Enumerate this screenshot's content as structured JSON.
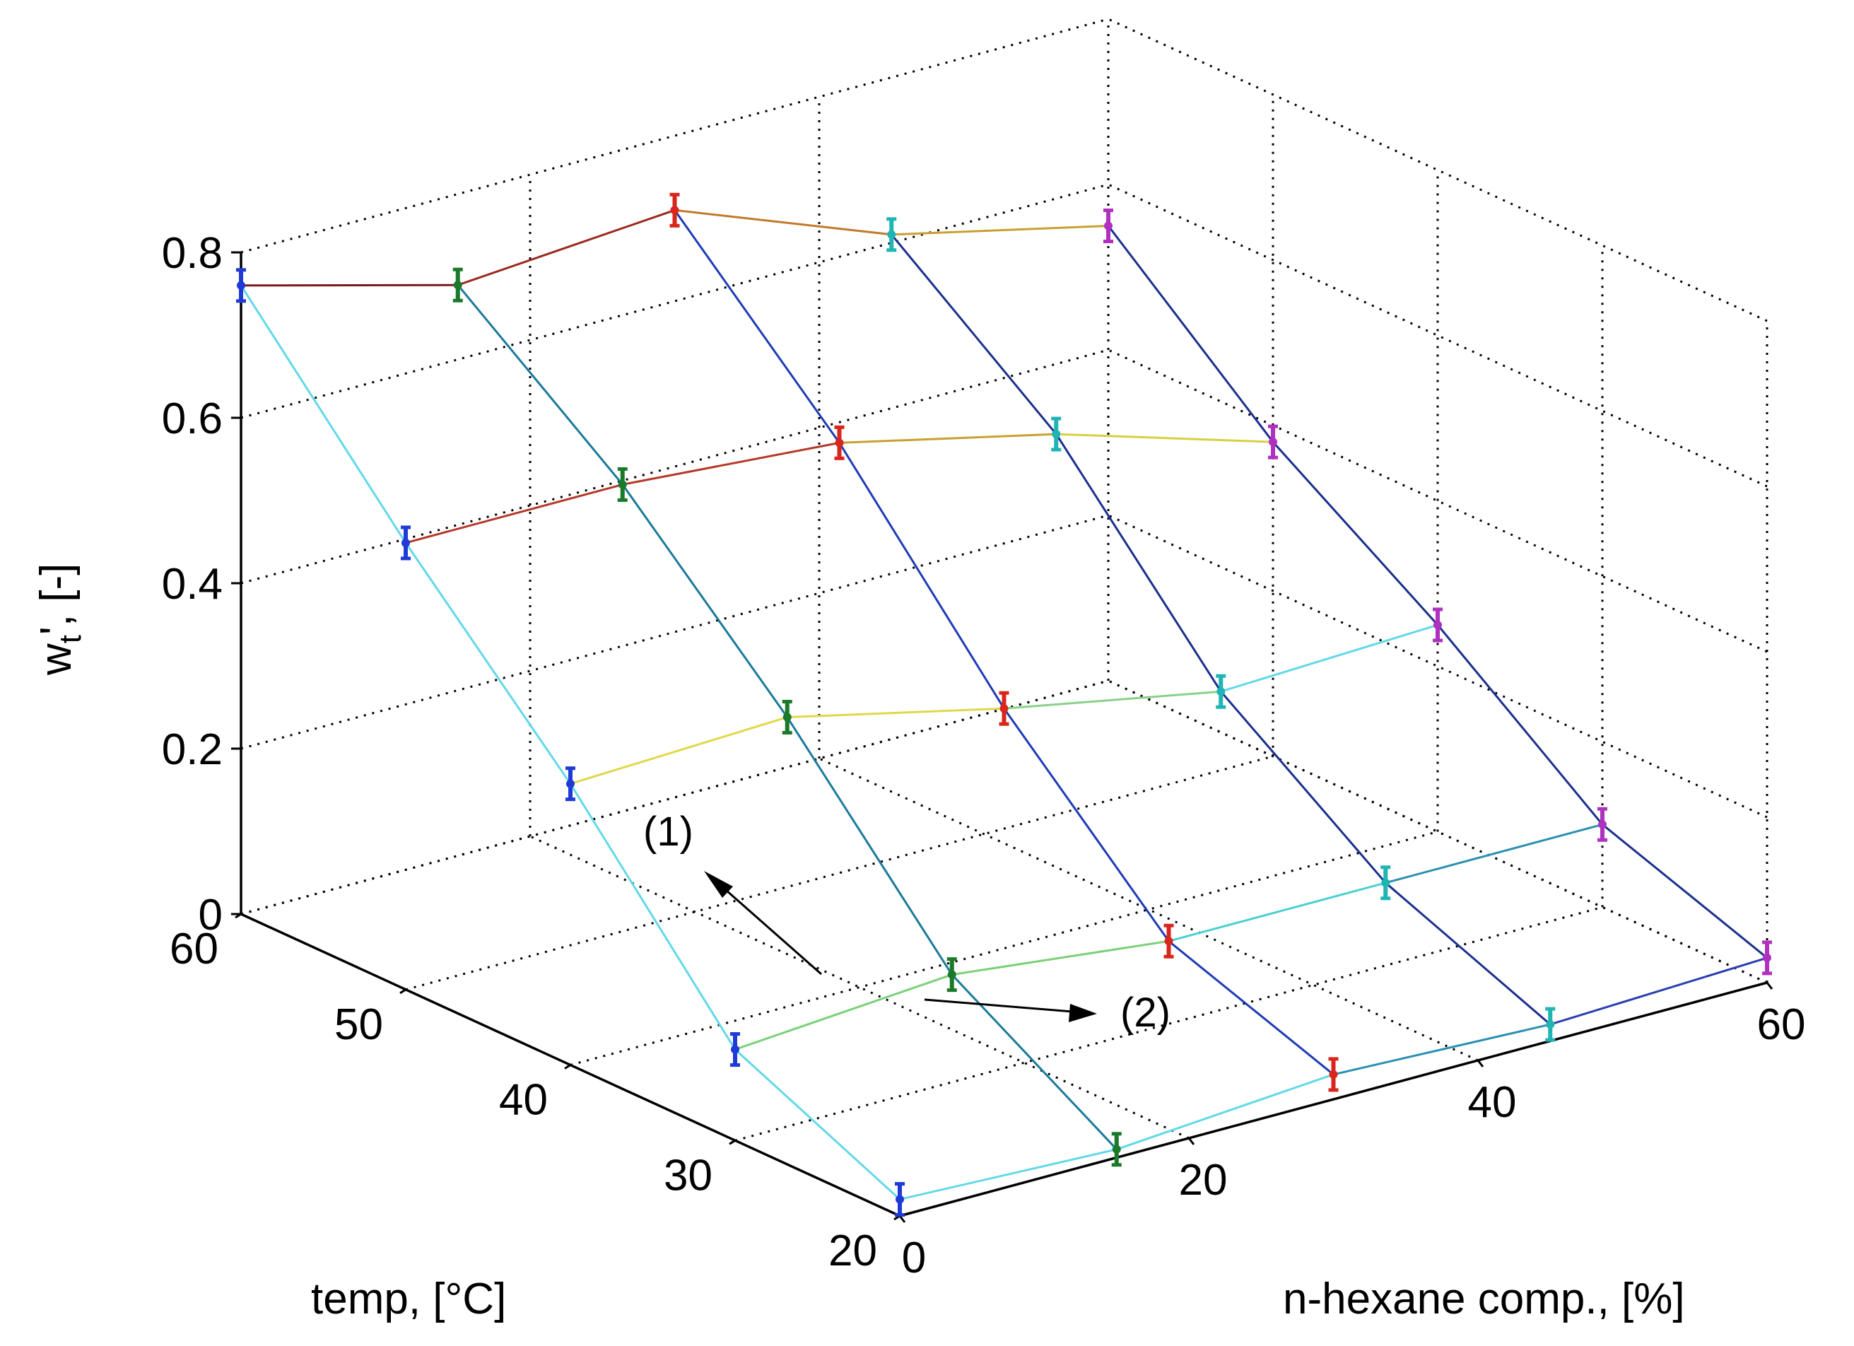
{
  "chart_data": {
    "type": "line3d",
    "xlabel": "n-hexane comp., [%]",
    "ylabel": "temp, [°C]",
    "zlabel": "w_t', [-]",
    "xlim": [
      0,
      60
    ],
    "ylim": [
      20,
      60
    ],
    "zlim": [
      0,
      0.8
    ],
    "xticks": [
      "0",
      "20",
      "40",
      "60"
    ],
    "yticks": [
      "20",
      "30",
      "40",
      "50",
      "60"
    ],
    "zticks": [
      "0",
      "0.2",
      "0.4",
      "0.6",
      "0.8"
    ],
    "grid": true,
    "compositions": [
      0,
      15,
      30,
      45,
      60
    ],
    "temperatures": [
      60,
      50,
      40,
      30,
      20
    ],
    "values": [
      [
        0.76,
        0.54,
        0.34,
        0.11,
        0.02
      ],
      [
        0.69,
        0.54,
        0.35,
        0.13,
        0.01
      ],
      [
        0.71,
        0.52,
        0.29,
        0.1,
        0.03
      ],
      [
        0.61,
        0.46,
        0.24,
        0.1,
        0.02
      ],
      [
        0.55,
        0.38,
        0.25,
        0.1,
        0.03
      ]
    ],
    "marker_colors": [
      "#1f3ad6",
      "#1b7a2a",
      "#d9261c",
      "#20b4b4",
      "#b030c0"
    ],
    "composition_series": [
      {
        "name": "comp 0%",
        "color": "#62d9e8"
      },
      {
        "name": "comp 15%",
        "color": "#1a7a9a"
      },
      {
        "name": "comp 30%",
        "color": "#1f3ab5"
      },
      {
        "name": "comp 45%",
        "color": "#1a2f8c"
      },
      {
        "name": "comp 60%",
        "color": "#1a2f8c"
      }
    ],
    "temperature_series": [
      {
        "name": "60 °C",
        "colors": [
          "#7a1a1a",
          "#9a2a20",
          "#c07a2a",
          "#c8a030"
        ]
      },
      {
        "name": "50 °C",
        "colors": [
          "#b5382a",
          "#b5382a",
          "#c8a030",
          "#d8d040"
        ]
      },
      {
        "name": "40 °C",
        "colors": [
          "#e0d84a",
          "#e0d84a",
          "#8ad08a",
          "#62d9e8"
        ]
      },
      {
        "name": "30 °C",
        "colors": [
          "#7ad07a",
          "#7ad07a",
          "#4ad0d0",
          "#2a90b0"
        ]
      },
      {
        "name": "20 °C",
        "colors": [
          "#62d9e8",
          "#62d9e8",
          "#2a90b0",
          "#2a40b0"
        ]
      }
    ],
    "annotations": [
      {
        "text": "(1)",
        "points_to": "increasing temperature"
      },
      {
        "text": "(2)",
        "points_to": "increasing n-hexane composition"
      }
    ]
  }
}
